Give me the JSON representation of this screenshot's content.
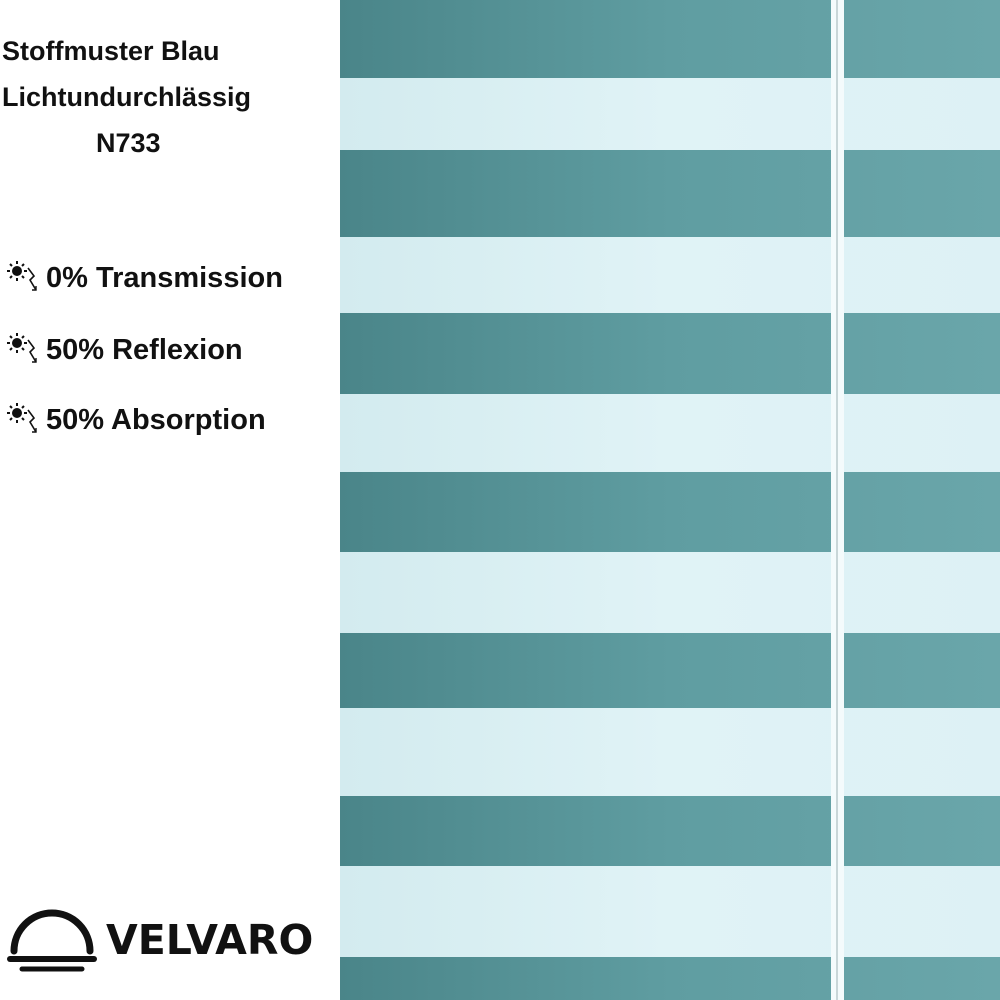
{
  "product": {
    "title_line1": "Stoffmuster Blau",
    "title_line2": "Lichtundurchlässig",
    "code": "N733"
  },
  "properties": [
    {
      "icon": "sun-light-icon",
      "label": "0% Transmission"
    },
    {
      "icon": "sun-light-icon",
      "label": "50% Reflexion"
    },
    {
      "icon": "sun-light-icon",
      "label": "50% Absorption"
    }
  ],
  "brand": {
    "name": "VELVARO",
    "logo_icon": "half-dome-logo-icon"
  },
  "fabric": {
    "dark_stripe_color": "#4f8f93",
    "light_stripe_color": "#d8eef3"
  }
}
